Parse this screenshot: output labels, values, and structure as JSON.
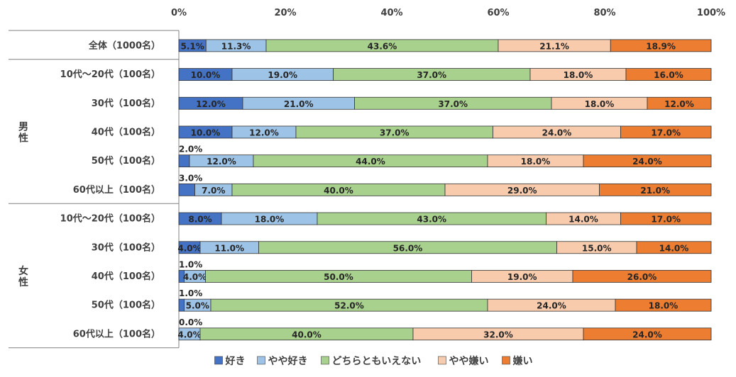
{
  "chart_data": {
    "type": "bar",
    "orientation": "horizontal-stacked-100",
    "xlim": [
      0,
      100
    ],
    "x_ticks": [
      "0%",
      "20%",
      "40%",
      "60%",
      "80%",
      "100%"
    ],
    "groups": [
      {
        "label": "",
        "rows": [
          0
        ]
      },
      {
        "label": "男性",
        "rows": [
          1,
          2,
          3,
          4,
          5
        ]
      },
      {
        "label": "女性",
        "rows": [
          6,
          7,
          8,
          9,
          10
        ]
      }
    ],
    "categories": [
      "全体（1000名）",
      "10代〜20代（100名）",
      "30代（100名）",
      "40代（100名）",
      "50代（100名）",
      "60代以上（100名）",
      "10代〜20代（100名）",
      "30代（100名）",
      "40代（100名）",
      "50代（100名）",
      "60代以上（100名）"
    ],
    "series": [
      {
        "name": "好き",
        "color": "#4472c4",
        "values": [
          5.1,
          10.0,
          12.0,
          10.0,
          2.0,
          3.0,
          8.0,
          4.0,
          1.0,
          1.0,
          0.0
        ],
        "labels": [
          "5.1%",
          "10.0%",
          "12.0%",
          "10.0%",
          "2.0%",
          "3.0%",
          "8.0%",
          "4.0%",
          "1.0%",
          "1.0%",
          "0.0%"
        ]
      },
      {
        "name": "やや好き",
        "color": "#9dc3e6",
        "values": [
          11.3,
          19.0,
          21.0,
          12.0,
          12.0,
          7.0,
          18.0,
          11.0,
          4.0,
          5.0,
          4.0
        ],
        "labels": [
          "11.3%",
          "19.0%",
          "21.0%",
          "12.0%",
          "12.0%",
          "7.0%",
          "18.0%",
          "11.0%",
          "4.0%",
          "5.0%",
          "4.0%"
        ]
      },
      {
        "name": "どちらともいえない",
        "color": "#a9d18e",
        "values": [
          43.6,
          37.0,
          37.0,
          37.0,
          44.0,
          40.0,
          43.0,
          56.0,
          50.0,
          52.0,
          40.0
        ],
        "labels": [
          "43.6%",
          "37.0%",
          "37.0%",
          "37.0%",
          "44.0%",
          "40.0%",
          "43.0%",
          "56.0%",
          "50.0%",
          "52.0%",
          "40.0%"
        ]
      },
      {
        "name": "やや嫌い",
        "color": "#f8cbad",
        "values": [
          21.1,
          18.0,
          18.0,
          24.0,
          18.0,
          29.0,
          14.0,
          15.0,
          19.0,
          24.0,
          32.0
        ],
        "labels": [
          "21.1%",
          "18.0%",
          "18.0%",
          "24.0%",
          "18.0%",
          "29.0%",
          "14.0%",
          "15.0%",
          "19.0%",
          "24.0%",
          "32.0%"
        ]
      },
      {
        "name": "嫌い",
        "color": "#ed7d31",
        "values": [
          18.9,
          16.0,
          12.0,
          17.0,
          24.0,
          21.0,
          17.0,
          14.0,
          26.0,
          18.0,
          24.0
        ],
        "labels": [
          "18.9%",
          "16.0%",
          "12.0%",
          "17.0%",
          "24.0%",
          "21.0%",
          "17.0%",
          "14.0%",
          "26.0%",
          "18.0%",
          "24.0%"
        ]
      }
    ],
    "legend_position": "bottom",
    "grid": false
  }
}
